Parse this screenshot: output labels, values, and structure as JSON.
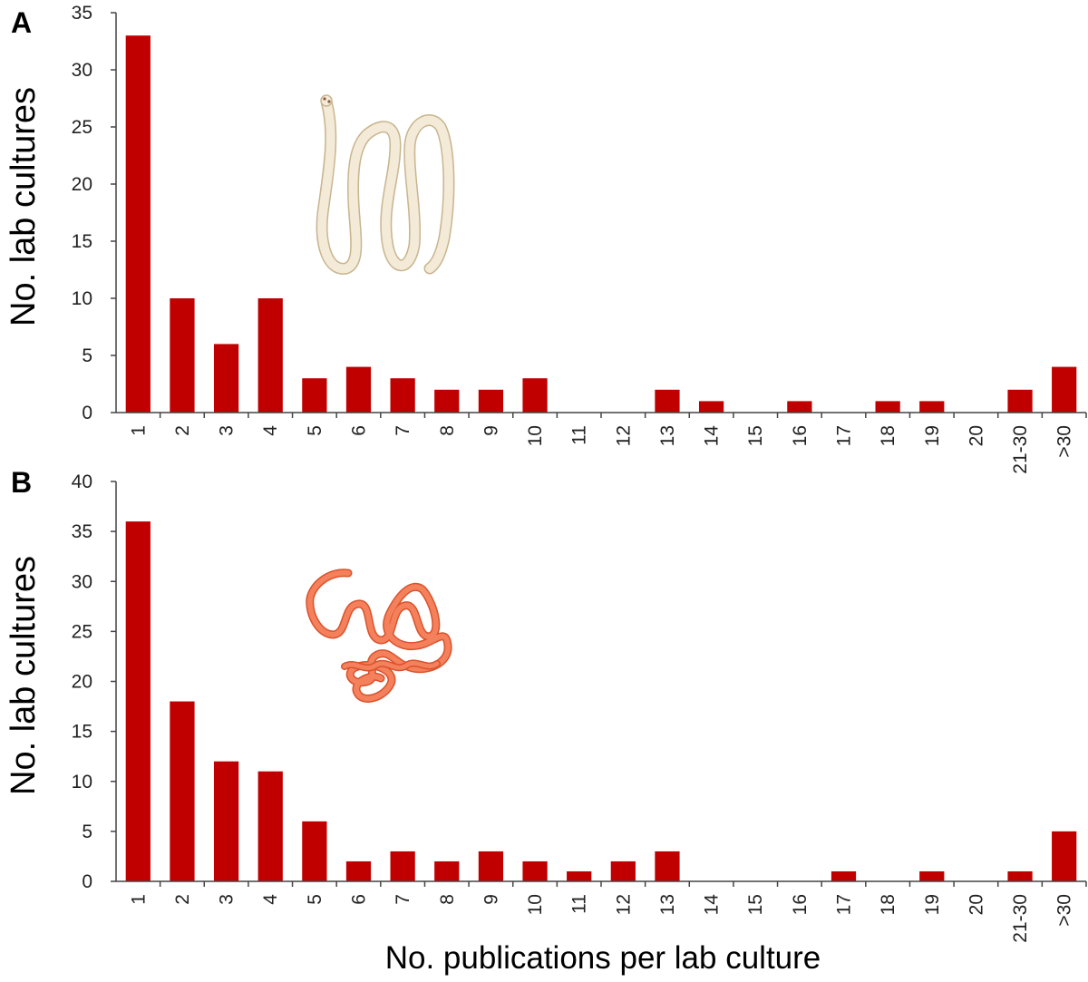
{
  "colors": {
    "bar": "#c00000",
    "axis": "#444444",
    "tapeworm_fill": "#f3ead8",
    "tapeworm_stroke": "#c9b58f",
    "roundworm_fill": "#f5805c",
    "roundworm_stroke": "#d9522c"
  },
  "icons": [
    "tapeworm-illustration",
    "roundworm-illustration"
  ],
  "chart_data": [
    {
      "type": "bar",
      "panel": "A",
      "categories": [
        "1",
        "2",
        "3",
        "4",
        "5",
        "6",
        "7",
        "8",
        "9",
        "10",
        "11",
        "12",
        "13",
        "14",
        "15",
        "16",
        "17",
        "18",
        "19",
        "20",
        "21-30",
        ">30"
      ],
      "values": [
        33,
        10,
        6,
        10,
        3,
        4,
        3,
        2,
        2,
        3,
        0,
        0,
        2,
        1,
        0,
        1,
        0,
        1,
        1,
        0,
        2,
        4
      ],
      "ylabel": "No. lab cultures",
      "xlabel": "",
      "ylim": [
        0,
        35
      ],
      "yticks": [
        "0",
        "5",
        "10",
        "15",
        "20",
        "25",
        "30",
        "35"
      ],
      "grid": false
    },
    {
      "type": "bar",
      "panel": "B",
      "categories": [
        "1",
        "2",
        "3",
        "4",
        "5",
        "6",
        "7",
        "8",
        "9",
        "10",
        "11",
        "12",
        "13",
        "14",
        "15",
        "16",
        "17",
        "18",
        "19",
        "20",
        "21-30",
        ">30"
      ],
      "values": [
        36,
        18,
        12,
        11,
        6,
        2,
        3,
        2,
        3,
        2,
        1,
        2,
        3,
        0,
        0,
        0,
        1,
        0,
        1,
        0,
        1,
        5
      ],
      "ylabel": "No. lab cultures",
      "xlabel": "No. publications per lab culture",
      "ylim": [
        0,
        40
      ],
      "yticks": [
        "0",
        "5",
        "10",
        "15",
        "20",
        "25",
        "30",
        "35",
        "40"
      ],
      "grid": false
    }
  ]
}
